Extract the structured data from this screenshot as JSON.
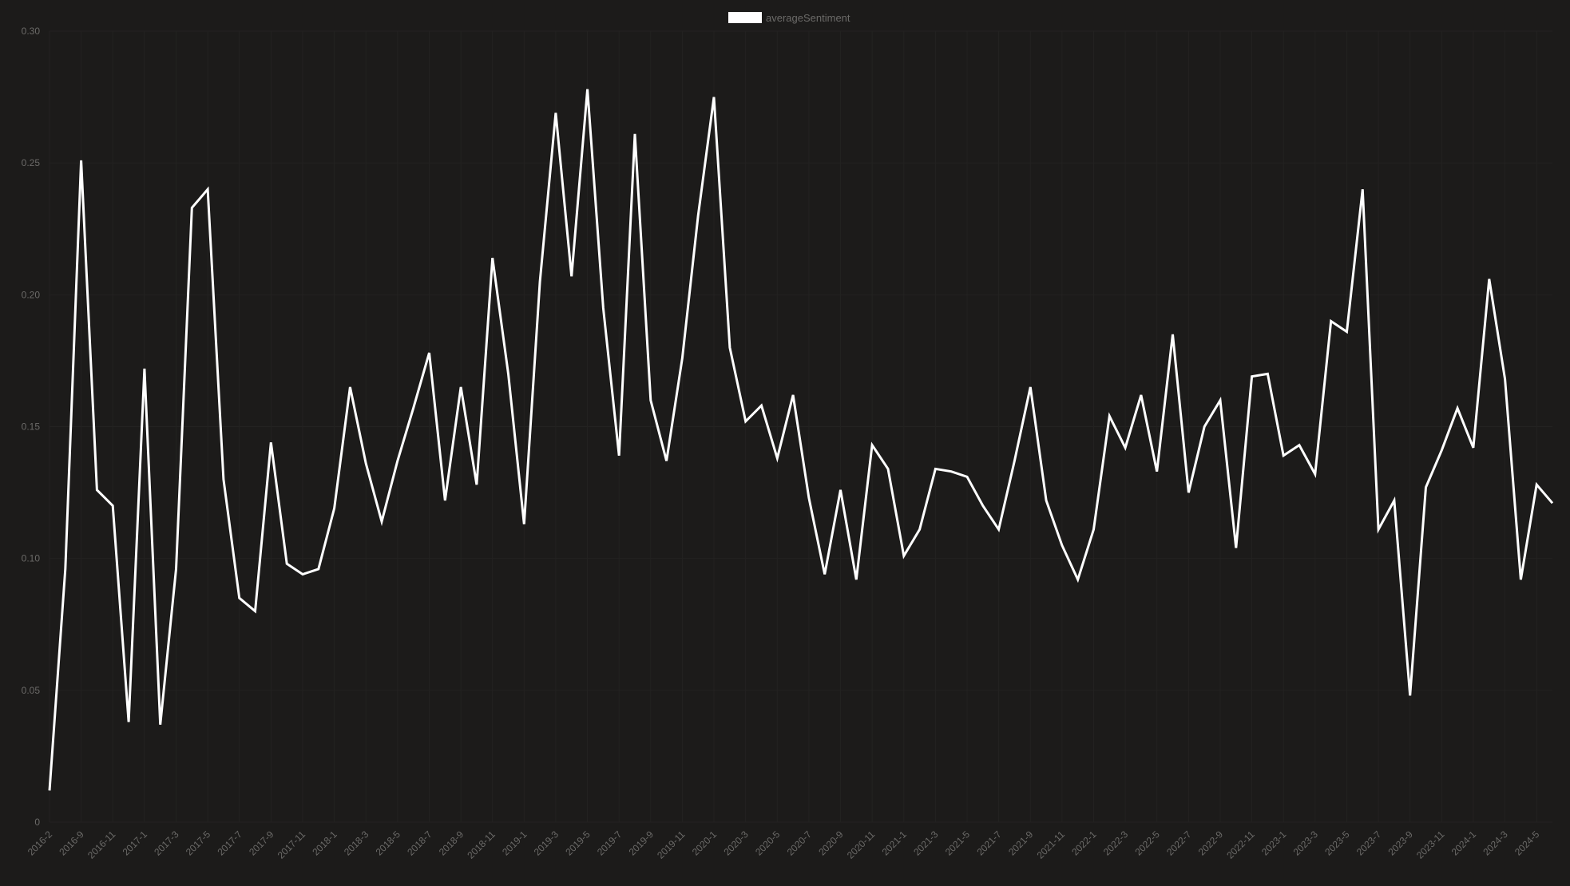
{
  "chart_data": {
    "type": "line",
    "title": "",
    "xlabel": "",
    "ylabel": "",
    "ylim": [
      0,
      0.3
    ],
    "y_ticks": [
      "0",
      "0.05",
      "0.10",
      "0.15",
      "0.20",
      "0.25",
      "0.30"
    ],
    "y_tick_values": [
      0,
      0.05,
      0.1,
      0.15,
      0.2,
      0.25,
      0.3
    ],
    "grid": true,
    "legend_position": "top-center",
    "colors": {
      "background": "#1c1b1a",
      "line": "#ffffff",
      "text": "#6b6a68",
      "grid": "#232221"
    },
    "x": [
      "2016-2",
      "2016-8",
      "2016-9",
      "2016-10",
      "2016-11",
      "2016-12",
      "2017-1",
      "2017-2",
      "2017-3",
      "2017-4",
      "2017-5",
      "2017-6",
      "2017-7",
      "2017-8",
      "2017-9",
      "2017-10",
      "2017-11",
      "2017-12",
      "2018-1",
      "2018-2",
      "2018-3",
      "2018-4",
      "2018-5",
      "2018-6",
      "2018-7",
      "2018-8",
      "2018-9",
      "2018-10",
      "2018-11",
      "2018-12",
      "2019-1",
      "2019-2",
      "2019-3",
      "2019-4",
      "2019-5",
      "2019-6",
      "2019-7",
      "2019-8",
      "2019-9",
      "2019-10",
      "2019-11",
      "2019-12",
      "2020-1",
      "2020-2",
      "2020-3",
      "2020-4",
      "2020-5",
      "2020-6",
      "2020-7",
      "2020-8",
      "2020-9",
      "2020-10",
      "2020-11",
      "2020-12",
      "2021-1",
      "2021-2",
      "2021-3",
      "2021-4",
      "2021-5",
      "2021-6",
      "2021-7",
      "2021-8",
      "2021-9",
      "2021-10",
      "2021-11",
      "2021-12",
      "2022-1",
      "2022-2",
      "2022-3",
      "2022-4",
      "2022-5",
      "2022-6",
      "2022-7",
      "2022-8",
      "2022-9",
      "2022-10",
      "2022-11",
      "2022-12",
      "2023-1",
      "2023-2",
      "2023-3",
      "2023-4",
      "2023-5",
      "2023-6",
      "2023-7",
      "2023-8",
      "2023-9",
      "2023-10",
      "2023-11",
      "2023-12",
      "2024-1",
      "2024-2",
      "2024-3",
      "2024-4",
      "2024-5",
      "2024-6"
    ],
    "x_tick_labels": [
      "2016-2",
      "2016-9",
      "2016-11",
      "2017-1",
      "2017-3",
      "2017-5",
      "2017-7",
      "2017-9",
      "2017-11",
      "2018-1",
      "2018-3",
      "2018-5",
      "2018-7",
      "2018-9",
      "2018-11",
      "2019-1",
      "2019-3",
      "2019-5",
      "2019-7",
      "2019-9",
      "2019-11",
      "2020-1",
      "2020-3",
      "2020-5",
      "2020-7",
      "2020-9",
      "2020-11",
      "2021-1",
      "2021-3",
      "2021-5",
      "2021-7",
      "2021-9",
      "2021-11",
      "2022-1",
      "2022-3",
      "2022-5",
      "2022-7",
      "2022-9",
      "2022-11",
      "2023-1",
      "2023-3",
      "2023-5",
      "2023-7",
      "2023-9",
      "2023-11",
      "2024-1",
      "2024-3",
      "2024-5"
    ],
    "series": [
      {
        "name": "averageSentiment",
        "values": [
          0.012,
          0.096,
          0.251,
          0.126,
          0.12,
          0.038,
          0.172,
          0.037,
          0.096,
          0.233,
          0.24,
          0.13,
          0.085,
          0.08,
          0.144,
          0.098,
          0.094,
          0.096,
          0.119,
          0.165,
          0.136,
          0.114,
          0.137,
          0.157,
          0.178,
          0.122,
          0.165,
          0.128,
          0.214,
          0.17,
          0.113,
          0.205,
          0.269,
          0.207,
          0.278,
          0.195,
          0.139,
          0.261,
          0.16,
          0.137,
          0.176,
          0.23,
          0.275,
          0.18,
          0.152,
          0.158,
          0.138,
          0.162,
          0.123,
          0.094,
          0.126,
          0.092,
          0.143,
          0.134,
          0.101,
          0.111,
          0.134,
          0.133,
          0.131,
          0.12,
          0.111,
          0.137,
          0.165,
          0.122,
          0.105,
          0.092,
          0.111,
          0.154,
          0.142,
          0.162,
          0.133,
          0.185,
          0.125,
          0.15,
          0.16,
          0.104,
          0.169,
          0.17,
          0.139,
          0.143,
          0.132,
          0.19,
          0.186,
          0.24,
          0.111,
          0.122,
          0.048,
          0.127,
          0.141,
          0.157,
          0.142,
          0.206,
          0.168,
          0.092,
          0.128,
          0.121
        ]
      }
    ]
  }
}
